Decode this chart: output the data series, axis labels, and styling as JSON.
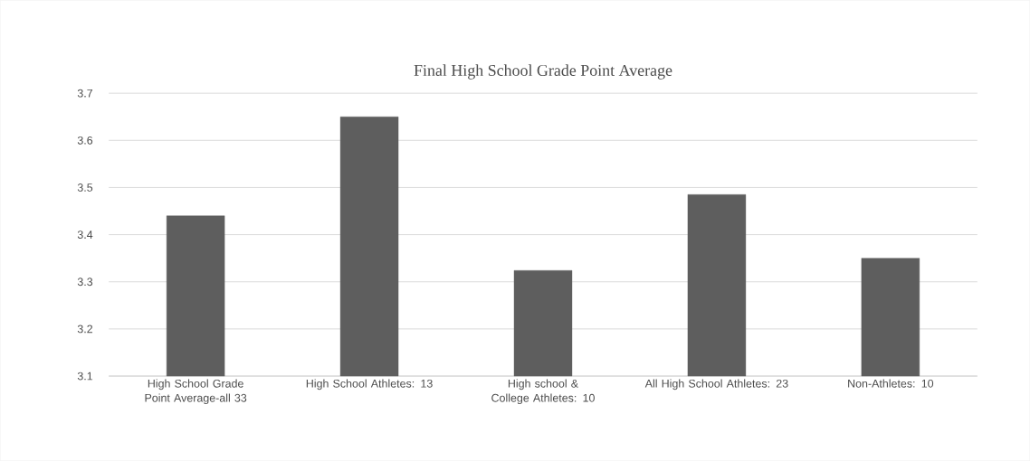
{
  "chart_data": {
    "type": "bar",
    "title": "Final High School Grade Point Average",
    "categories": [
      "High School Grade Point Average-all 33",
      "High School Athletes: 13",
      "High school & College Athletes: 10",
      "All High School Athletes: 23",
      "Non-Athletes: 10"
    ],
    "values": [
      3.44,
      3.65,
      3.324,
      3.485,
      3.35
    ],
    "color": "#5e5e5e",
    "ylim": [
      3.1,
      3.7
    ],
    "yticks": [
      3.1,
      3.2,
      3.3,
      3.4,
      3.5,
      3.6,
      3.7
    ],
    "grid": "y"
  }
}
